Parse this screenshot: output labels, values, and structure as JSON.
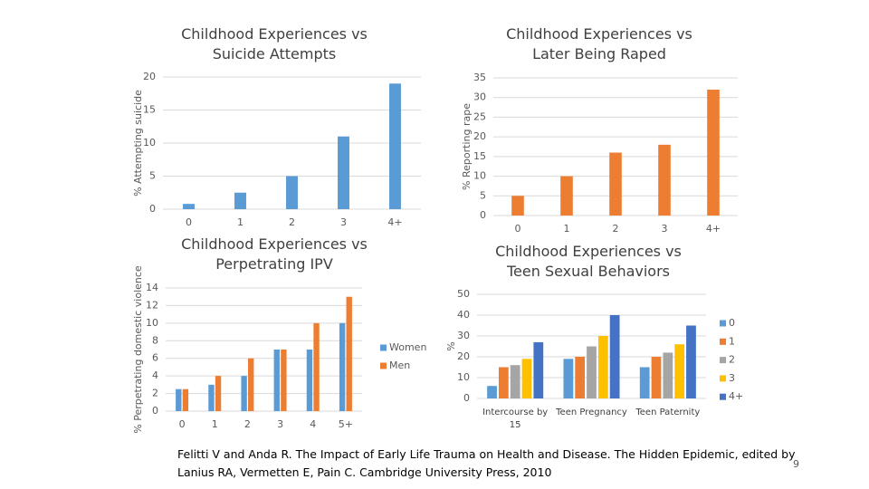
{
  "chart_data": [
    {
      "type": "bar",
      "title": "Childhood Experiences vs Suicide Attempts",
      "y_label": "% Attempting suicide",
      "categories": [
        "0",
        "1",
        "2",
        "3",
        "4+"
      ],
      "values": [
        0.8,
        2.5,
        5,
        11,
        19
      ],
      "color": "#5b9bd5",
      "ylim": [
        0,
        20
      ],
      "yticks": [
        0,
        5,
        10,
        15,
        20
      ],
      "grid": true
    },
    {
      "type": "bar",
      "title": "Childhood Experiences vs Later Being Raped",
      "y_label": "% Reporting rape",
      "categories": [
        "0",
        "1",
        "2",
        "3",
        "4+"
      ],
      "values": [
        5,
        10,
        16,
        18,
        32
      ],
      "color": "#ed7d31",
      "ylim": [
        0,
        35
      ],
      "yticks": [
        0,
        5,
        10,
        15,
        20,
        25,
        30,
        35
      ],
      "grid": true
    },
    {
      "type": "bar",
      "title": "Childhood Experiences vs Perpetrating IPV",
      "y_label": "% Perpetrating domestic violence",
      "categories": [
        "0",
        "1",
        "2",
        "3",
        "4",
        "5+"
      ],
      "series": [
        {
          "name": "Women",
          "color": "#5b9bd5",
          "values": [
            2.5,
            3,
            4,
            7,
            7,
            10
          ]
        },
        {
          "name": "Men",
          "color": "#ed7d31",
          "values": [
            2.5,
            4,
            6,
            7,
            10,
            13
          ]
        }
      ],
      "ylim": [
        0,
        14
      ],
      "yticks": [
        0,
        2,
        4,
        6,
        8,
        10,
        12,
        14
      ],
      "grid": true,
      "legend": "right"
    },
    {
      "type": "bar",
      "title": "Childhood Experiences vs Teen Sexual Behaviors",
      "y_label": "%",
      "categories": [
        "Intercourse by 15",
        "Teen Pregnancy",
        "Teen Paternity"
      ],
      "series": [
        {
          "name": "0",
          "color": "#5b9bd5",
          "values": [
            6,
            19,
            15
          ]
        },
        {
          "name": "1",
          "color": "#ed7d31",
          "values": [
            15,
            20,
            20
          ]
        },
        {
          "name": "2",
          "color": "#a5a5a5",
          "values": [
            16,
            25,
            22
          ]
        },
        {
          "name": "3",
          "color": "#ffc000",
          "values": [
            19,
            30,
            26
          ]
        },
        {
          "name": "4+",
          "color": "#4472c4",
          "values": [
            27,
            40,
            35
          ]
        }
      ],
      "ylim": [
        0,
        50
      ],
      "yticks": [
        0,
        10,
        20,
        30,
        40,
        50
      ],
      "grid": true,
      "legend": "right"
    }
  ],
  "citation": "Felitti V and Anda R. The Impact of Early Life Trauma on Health and Disease. The Hidden Epidemic, edited by Lanius RA, Vermetten E, Pain C. Cambridge University Press, 2010",
  "page_number": "9"
}
